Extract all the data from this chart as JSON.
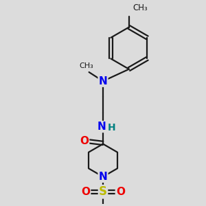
{
  "background_color": "#dcdcdc",
  "bond_color": "#1a1a1a",
  "bond_width": 1.6,
  "atom_colors": {
    "N": "#0000ee",
    "O": "#ee0000",
    "S": "#bbbb00",
    "H": "#008080",
    "C": "#1a1a1a"
  },
  "font_size_atom": 10,
  "xlim": [
    0,
    10
  ],
  "ylim": [
    0,
    10
  ]
}
